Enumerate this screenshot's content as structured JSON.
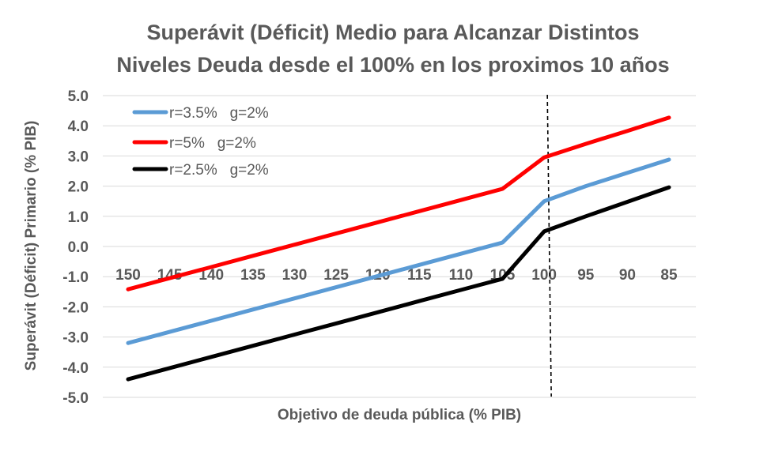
{
  "chart_data": {
    "type": "line",
    "title_lines": [
      "Superávit (Déficit) Medio para Alcanzar Distintos",
      "Niveles Deuda desde el 100% en los proximos 10 años"
    ],
    "xlabel": "Objetivo de deuda pública (% PIB)",
    "ylabel": "Superávit (Déficit) Primario (% PIB)",
    "x": [
      "150",
      "145",
      "140",
      "135",
      "130",
      "125",
      "120",
      "115",
      "110",
      "105",
      "100",
      "95",
      "90",
      "85"
    ],
    "x_values": [
      150,
      145,
      140,
      135,
      130,
      125,
      120,
      115,
      110,
      105,
      100,
      95,
      90,
      85
    ],
    "x_axis_reversed": true,
    "ylim": [
      -5.0,
      5.0
    ],
    "y_ticks": [
      "5.0",
      "4.0",
      "3.0",
      "2.0",
      "1.0",
      "0.0",
      "-1.0",
      "-2.0",
      "-3.0",
      "-4.0",
      "-5.0"
    ],
    "y_tick_values": [
      5,
      4,
      3,
      2,
      1,
      0,
      -1,
      -2,
      -3,
      -4,
      -5
    ],
    "grid": "horizontal",
    "legend_position": "top-left",
    "reference_line": {
      "x": 100,
      "style": "dashed",
      "color": "#000000"
    },
    "series": [
      {
        "name": "r=3.5%   g=2%",
        "color": "#5B9BD5",
        "values": [
          -3.2,
          -2.83,
          -2.46,
          -2.09,
          -1.72,
          -1.35,
          -0.98,
          -0.61,
          -0.24,
          0.13,
          1.5,
          2.0,
          2.44,
          2.88
        ]
      },
      {
        "name": "r=5%   g=2%",
        "color": "#FF0000",
        "values": [
          -1.42,
          -1.05,
          -0.68,
          -0.31,
          0.06,
          0.43,
          0.8,
          1.17,
          1.54,
          1.91,
          2.95,
          3.4,
          3.83,
          4.27
        ]
      },
      {
        "name": "r=2.5%   g=2%",
        "color": "#000000",
        "values": [
          -4.4,
          -4.03,
          -3.66,
          -3.29,
          -2.92,
          -2.55,
          -2.18,
          -1.81,
          -1.44,
          -1.07,
          0.5,
          1.0,
          1.48,
          1.96
        ]
      }
    ]
  }
}
